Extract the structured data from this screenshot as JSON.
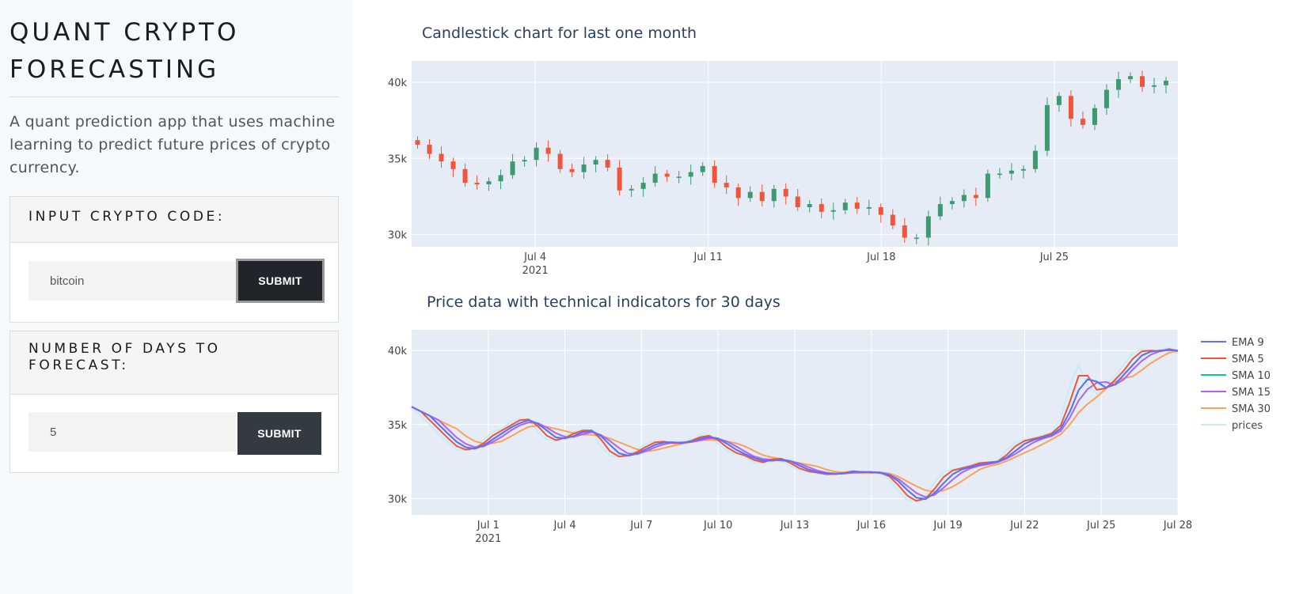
{
  "app": {
    "title": "QUANT CRYPTO FORECASTING",
    "description": "A quant prediction app that uses machine learning to predict future prices of crypto currency."
  },
  "crypto_card": {
    "header": "INPUT CRYPTO CODE:",
    "input_value": "bitcoin",
    "submit_label": "SUBMIT"
  },
  "days_card": {
    "header": "NUMBER OF DAYS TO FORECAST:",
    "input_value": "5",
    "submit_label": "SUBMIT"
  },
  "colors": {
    "plot_bg": "#e5ecf6",
    "increasing": "#3d9970",
    "decreasing": "#ef553b",
    "ema9": "#636efa",
    "sma5": "#ef553b",
    "sma10": "#00cc96",
    "sma15": "#ab63fa",
    "sma30": "#ffa15a",
    "prices": "#c7ecf5"
  },
  "chart_data": [
    {
      "type": "candlestick",
      "title": "Candlestick chart for last one month",
      "x_range": [
        "2021-06-29",
        "2021-07-30"
      ],
      "ylim": [
        29200,
        41400
      ],
      "x_ticks": [
        {
          "date": "2021-07-04",
          "label": "Jul 4",
          "sub": "2021"
        },
        {
          "date": "2021-07-11",
          "label": "Jul 11",
          "sub": ""
        },
        {
          "date": "2021-07-18",
          "label": "Jul 18",
          "sub": ""
        },
        {
          "date": "2021-07-25",
          "label": "Jul 25",
          "sub": ""
        }
      ],
      "y_ticks": [
        {
          "value": 30000,
          "label": "30k"
        },
        {
          "value": 35000,
          "label": "35k"
        },
        {
          "value": 40000,
          "label": "40k"
        }
      ],
      "close_series": [
        35900,
        35300,
        34800,
        34300,
        33400,
        33300,
        33500,
        33900,
        34800,
        34900,
        35700,
        35300,
        34300,
        34100,
        34600,
        34900,
        34400,
        32900,
        33000,
        33400,
        34000,
        33800,
        33800,
        34100,
        34500,
        33400,
        33100,
        32400,
        32800,
        32200,
        33000,
        32500,
        31800,
        32000,
        31500,
        31600,
        32100,
        31700,
        31800,
        31300,
        30600,
        29800,
        29800,
        31200,
        32000,
        32200,
        32600,
        32400,
        34000,
        34000,
        34200,
        34300,
        35500,
        38500,
        39100,
        37600,
        37200,
        38300,
        39500,
        40200,
        40400,
        39700,
        39800,
        40100
      ]
    },
    {
      "type": "line",
      "title": "Price data with technical indicators for 30 days",
      "x_range": [
        "2021-06-28",
        "2021-07-28"
      ],
      "ylim": [
        28900,
        41400
      ],
      "x_ticks": [
        {
          "date": "2021-07-01",
          "label": "Jul 1",
          "sub": "2021"
        },
        {
          "date": "2021-07-04",
          "label": "Jul 4",
          "sub": ""
        },
        {
          "date": "2021-07-07",
          "label": "Jul 7",
          "sub": ""
        },
        {
          "date": "2021-07-10",
          "label": "Jul 10",
          "sub": ""
        },
        {
          "date": "2021-07-13",
          "label": "Jul 13",
          "sub": ""
        },
        {
          "date": "2021-07-16",
          "label": "Jul 16",
          "sub": ""
        },
        {
          "date": "2021-07-19",
          "label": "Jul 19",
          "sub": ""
        },
        {
          "date": "2021-07-22",
          "label": "Jul 22",
          "sub": ""
        },
        {
          "date": "2021-07-25",
          "label": "Jul 25",
          "sub": ""
        },
        {
          "date": "2021-07-28",
          "label": "Jul 28",
          "sub": ""
        }
      ],
      "y_ticks": [
        {
          "value": 30000,
          "label": "30k"
        },
        {
          "value": 35000,
          "label": "35k"
        },
        {
          "value": 40000,
          "label": "40k"
        }
      ],
      "prices": [
        36200,
        35600,
        35000,
        34400,
        33800,
        33300,
        33300,
        33500,
        34000,
        34500,
        34700,
        35200,
        35400,
        35300,
        34500,
        34000,
        33900,
        34300,
        34500,
        34700,
        34500,
        33500,
        32900,
        32800,
        33000,
        33300,
        33700,
        33900,
        33800,
        33700,
        33800,
        34000,
        34300,
        34200,
        33700,
        33200,
        33000,
        32800,
        32400,
        32500,
        32800,
        32600,
        32200,
        31900,
        31800,
        31700,
        31600,
        31700,
        31800,
        31900,
        31700,
        31800,
        31700,
        31300,
        30500,
        29900,
        29800,
        30200,
        31100,
        31800,
        32000,
        32100,
        32300,
        32500,
        32400,
        32600,
        33300,
        33800,
        34000,
        34100,
        34300,
        34500,
        35400,
        37600,
        39000,
        37600,
        37100,
        37800,
        38200,
        39100,
        39800,
        40100,
        39900,
        40000,
        40200,
        39800
      ],
      "series": [
        {
          "name": "EMA 9",
          "lag": 2
        },
        {
          "name": "SMA 5",
          "lag": 1
        },
        {
          "name": "SMA 10",
          "lag": 1.5
        },
        {
          "name": "SMA 15",
          "lag": 3
        },
        {
          "name": "SMA 30",
          "lag": 5
        },
        {
          "name": "prices",
          "lag": 0
        }
      ]
    }
  ]
}
